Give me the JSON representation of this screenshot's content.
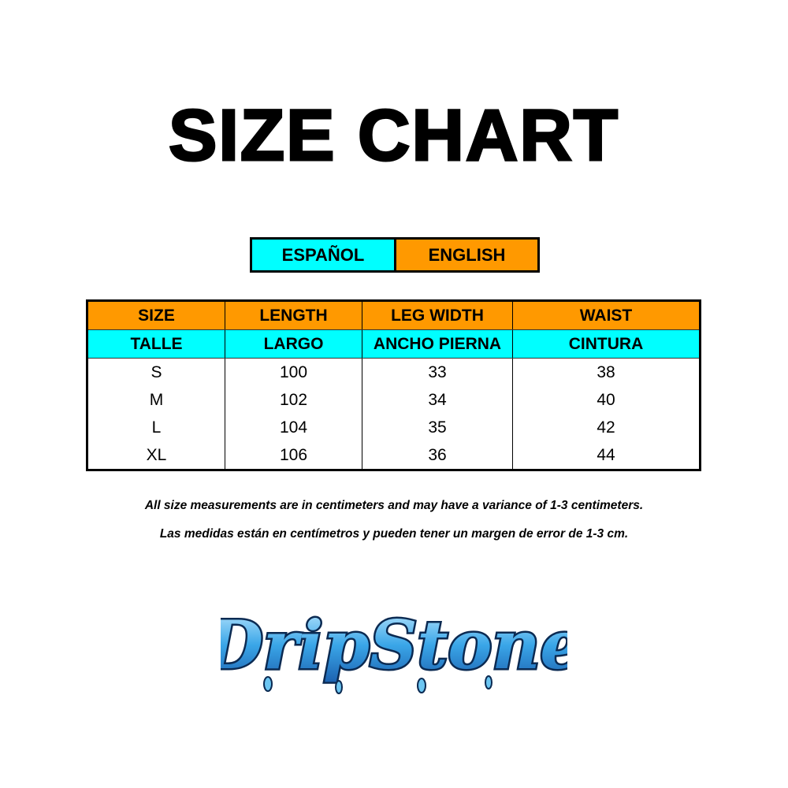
{
  "title": "SIZE CHART",
  "legend": {
    "spanish": "ESPAÑOL",
    "english": "ENGLISH"
  },
  "colors": {
    "spanish": "#00ffff",
    "english": "#ff9900"
  },
  "table": {
    "headers_en": [
      "SIZE",
      "LENGTH",
      "LEG WIDTH",
      "WAIST"
    ],
    "headers_es": [
      "TALLE",
      "LARGO",
      "ANCHO PIERNA",
      "CINTURA"
    ],
    "rows": [
      [
        "S",
        "100",
        "33",
        "38"
      ],
      [
        "M",
        "102",
        "34",
        "40"
      ],
      [
        "L",
        "104",
        "35",
        "42"
      ],
      [
        "XL",
        "106",
        "36",
        "44"
      ]
    ]
  },
  "notes": {
    "en": "All size measurements are in centimeters and may have a variance of 1-3 centimeters.",
    "es": "Las medidas están en centímetros y pueden tener un margen de error de 1-3 cm."
  },
  "logo": {
    "text": "DripStone"
  }
}
